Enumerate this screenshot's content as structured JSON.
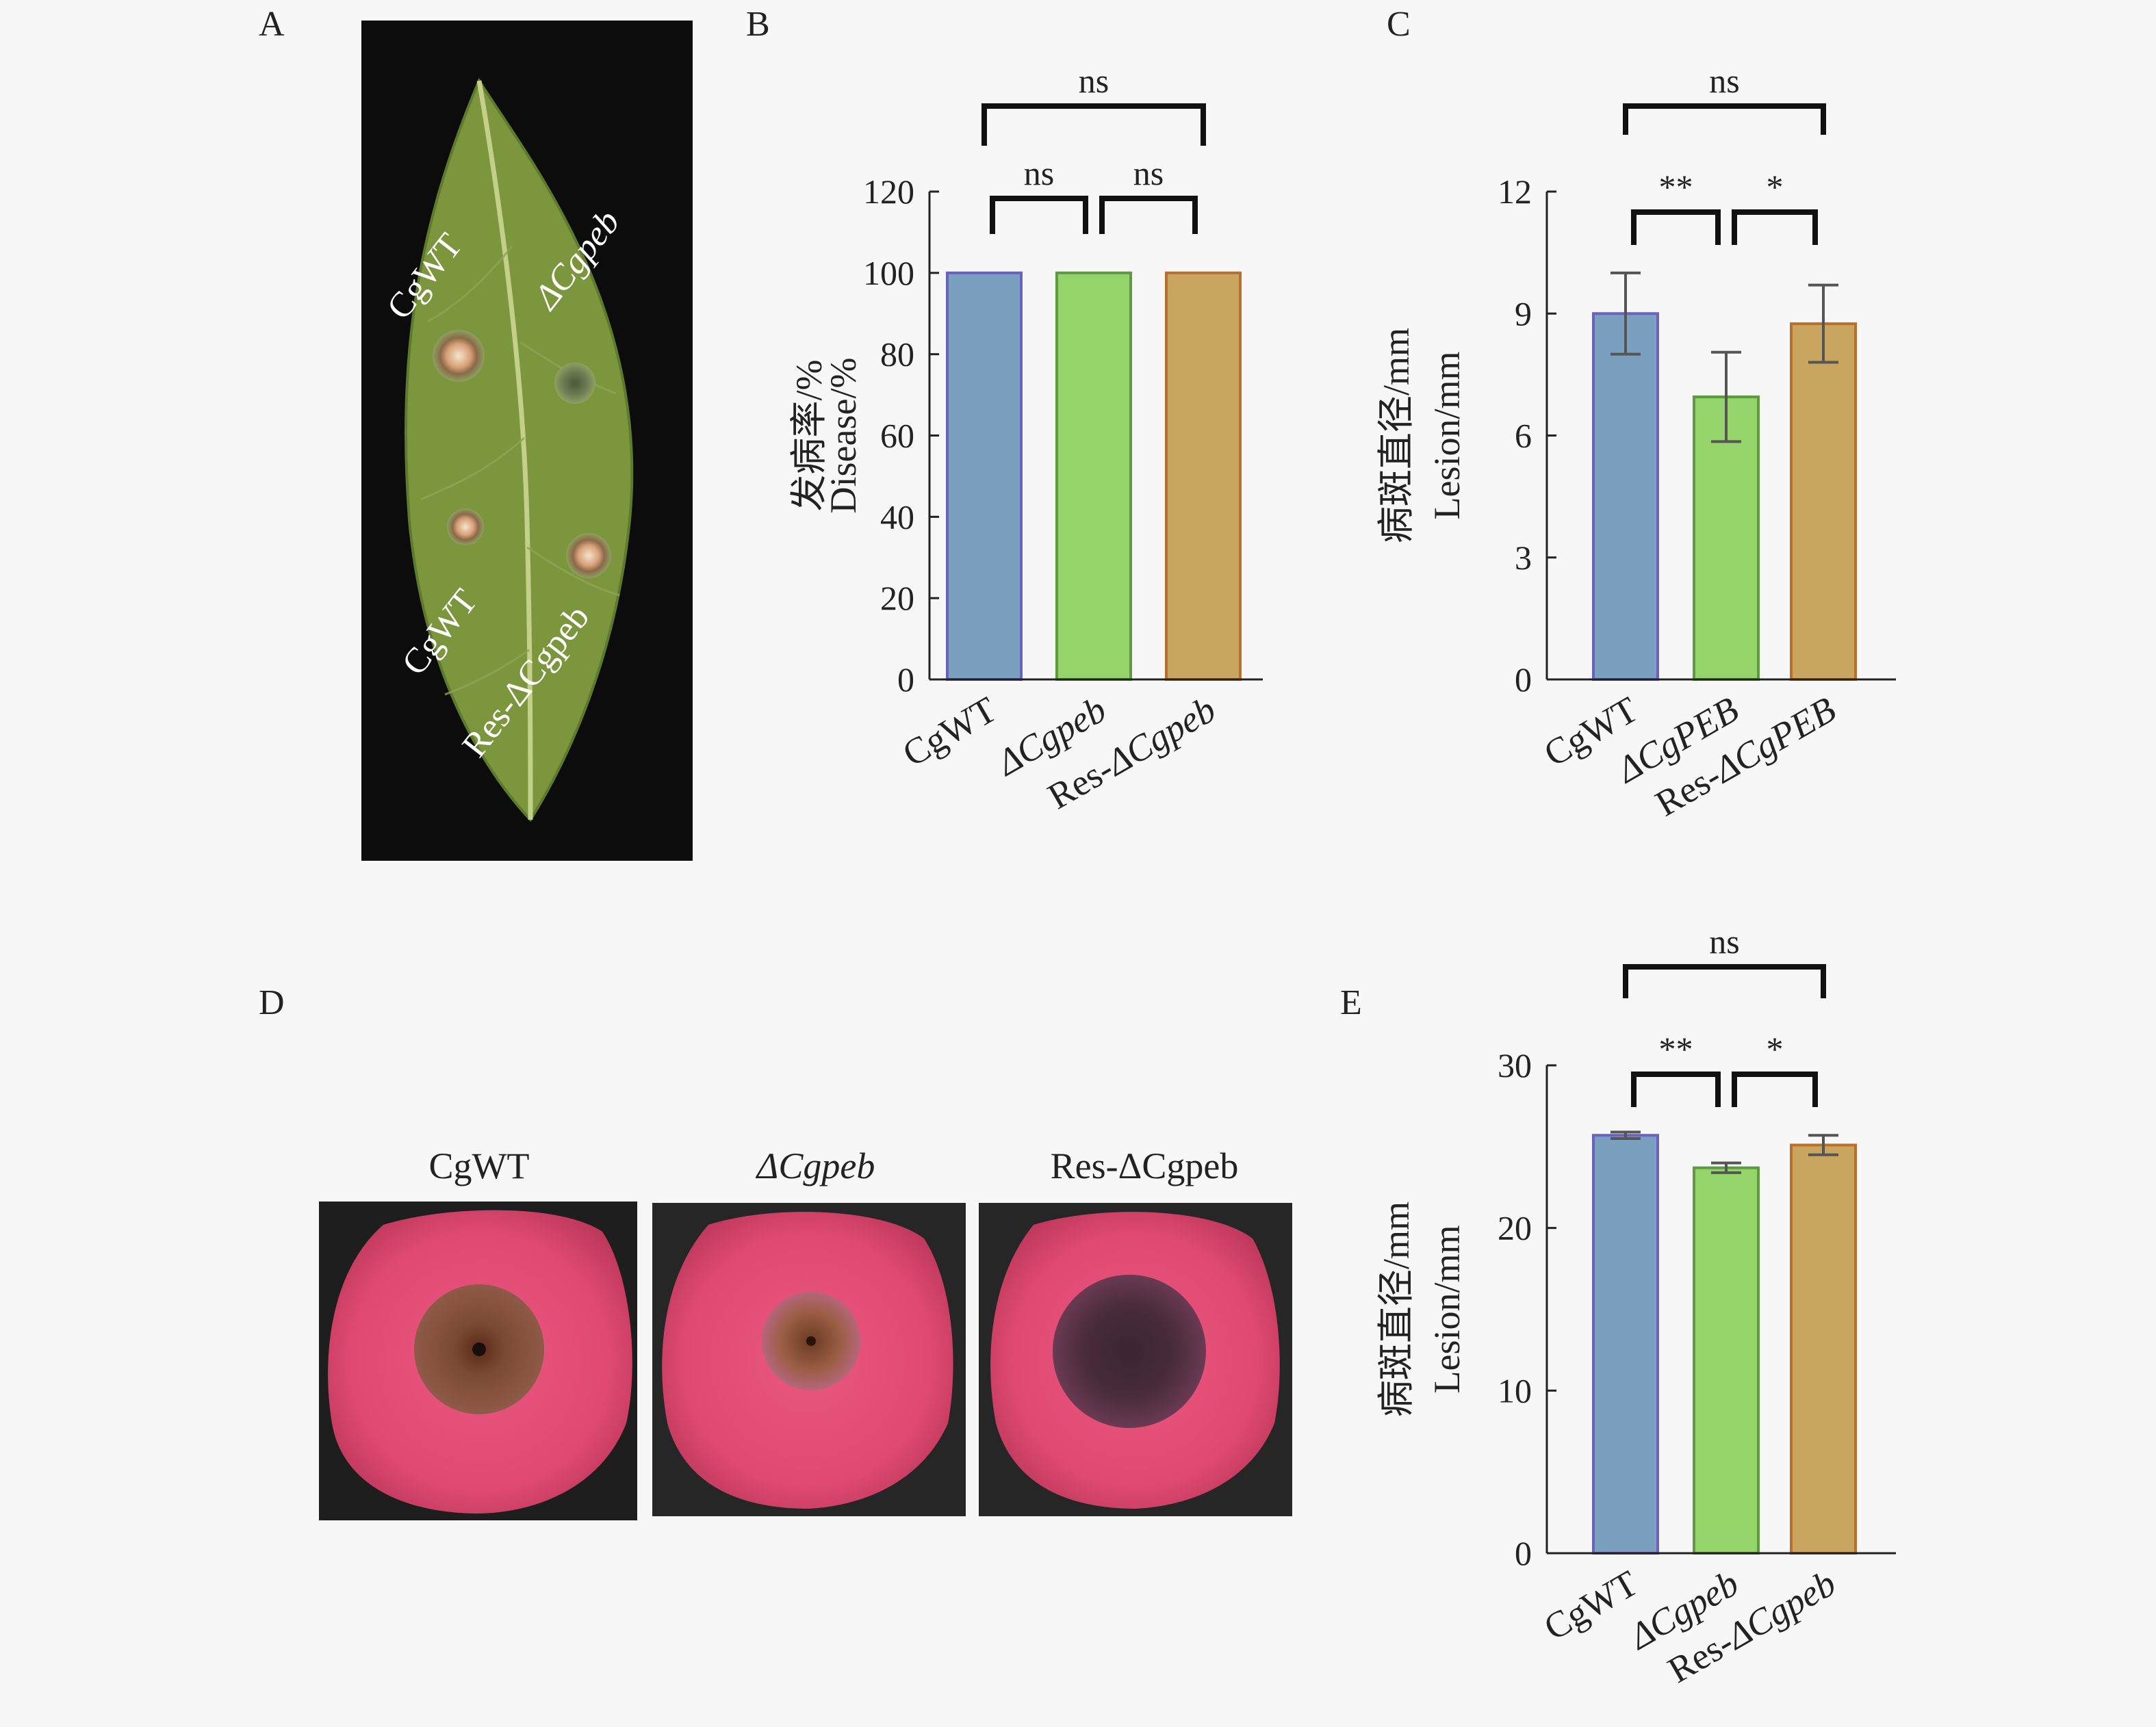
{
  "panels": {
    "A": "A",
    "B": "B",
    "C": "C",
    "D": "D",
    "E": "E"
  },
  "leaf": {
    "labels": [
      "CgWT",
      "ΔCgpeb",
      "CgWT",
      "Res-ΔCgpeb"
    ]
  },
  "fruit": {
    "labels": [
      "CgWT",
      "ΔCgpeb",
      "Res-ΔCgpeb"
    ]
  },
  "colors": {
    "bar1": "#7b9fbf",
    "bar2": "#94d46a",
    "bar3": "#c9a55f",
    "edge1": "#6a62c0",
    "edge2": "#5e9a3f",
    "edge3": "#b8712c",
    "background": "#f7f7f7"
  },
  "chart_data": [
    {
      "panel": "B",
      "type": "bar",
      "categories": [
        "CgWT",
        "ΔCgpeb",
        "Res-ΔCgpeb"
      ],
      "values": [
        100,
        100,
        100
      ],
      "errors": [
        0,
        0,
        0
      ],
      "ylabel_cn": "发病率/%",
      "ylabel_en": "Disease/%",
      "ylim": [
        0,
        120
      ],
      "yticks": [
        0,
        20,
        40,
        60,
        80,
        100,
        120
      ],
      "significance": [
        {
          "from": 0,
          "to": 1,
          "label": "ns"
        },
        {
          "from": 1,
          "to": 2,
          "label": "ns"
        },
        {
          "from": 0,
          "to": 2,
          "label": "ns"
        }
      ]
    },
    {
      "panel": "C",
      "type": "bar",
      "categories": [
        "CgWT",
        "ΔCgPEB",
        "Res-ΔCgPEB"
      ],
      "values": [
        9.0,
        6.95,
        8.75
      ],
      "errors": [
        1.0,
        1.1,
        0.95
      ],
      "ylabel_cn": "病斑直径/mm",
      "ylabel_en": "Lesion/mm",
      "ylim": [
        0,
        12
      ],
      "yticks": [
        0,
        3,
        6,
        9,
        12
      ],
      "significance": [
        {
          "from": 0,
          "to": 1,
          "label": "**"
        },
        {
          "from": 1,
          "to": 2,
          "label": "*"
        },
        {
          "from": 0,
          "to": 2,
          "label": "ns"
        }
      ]
    },
    {
      "panel": "E",
      "type": "bar",
      "categories": [
        "CgWT",
        "ΔCgpeb",
        "Res-ΔCgpeb"
      ],
      "values": [
        25.7,
        23.7,
        25.1
      ],
      "errors": [
        0.2,
        0.3,
        0.6
      ],
      "ylabel_cn": "病斑直径/mm",
      "ylabel_en": "Lesion/mm",
      "ylim": [
        0,
        30
      ],
      "yticks": [
        0,
        10,
        20,
        30
      ],
      "significance": [
        {
          "from": 0,
          "to": 1,
          "label": "**"
        },
        {
          "from": 1,
          "to": 2,
          "label": "*"
        },
        {
          "from": 0,
          "to": 2,
          "label": "ns"
        }
      ]
    }
  ]
}
